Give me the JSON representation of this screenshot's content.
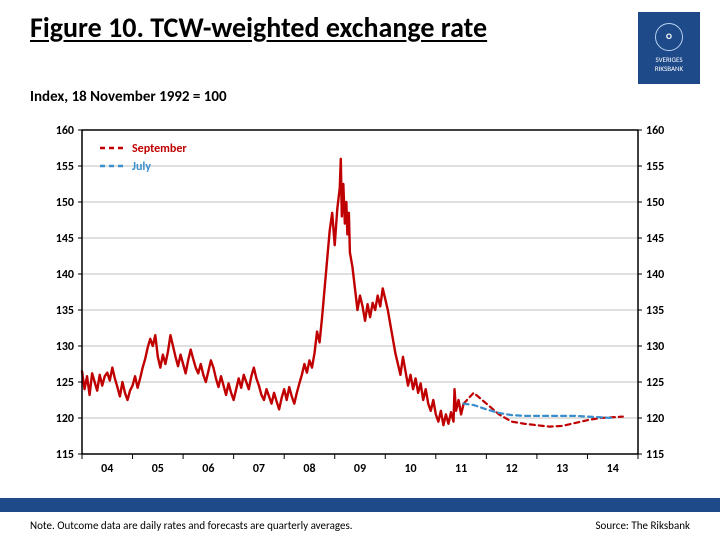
{
  "title": "Figure 10. TCW-weighted exchange rate",
  "subtitle": "Index, 18 November 1992 = 100",
  "note": "Note. Outcome data are daily rates and forecasts are quarterly averages.",
  "source": "Source: The Riksbank",
  "logo": {
    "line1": "SVERIGES",
    "line2": "RIKSBANK"
  },
  "chart": {
    "type": "line",
    "background_color": "#ffffff",
    "axis_color": "#000000",
    "grid_color": "#bfbfbf",
    "ylim": [
      115,
      160
    ],
    "ytick_step": 5,
    "yticks": [
      115,
      120,
      125,
      130,
      135,
      140,
      145,
      150,
      155,
      160
    ],
    "xlim": [
      2004,
      2015
    ],
    "xticks": [
      2004,
      2005,
      2006,
      2007,
      2008,
      2009,
      2010,
      2011,
      2012,
      2013,
      2014
    ],
    "xtick_labels": [
      "04",
      "05",
      "06",
      "07",
      "08",
      "09",
      "10",
      "11",
      "12",
      "13",
      "14"
    ],
    "axis_fontsize": 12,
    "axis_fontweight": 700,
    "line_width_main": 2.4,
    "line_width_forecast": 2.2,
    "dash_forecast": "5,4",
    "legend": {
      "position": "top-left",
      "items": [
        {
          "label": "September",
          "color": "#c00000",
          "dash": "5,4"
        },
        {
          "label": "July",
          "color": "#3b8ecc",
          "dash": "5,4"
        }
      ]
    },
    "series": [
      {
        "name": "outcome",
        "color": "#c00000",
        "solid": true,
        "data": [
          [
            2004.0,
            126.5
          ],
          [
            2004.05,
            124.0
          ],
          [
            2004.1,
            125.8
          ],
          [
            2004.15,
            123.2
          ],
          [
            2004.2,
            126.2
          ],
          [
            2004.25,
            125.0
          ],
          [
            2004.3,
            123.8
          ],
          [
            2004.35,
            126.0
          ],
          [
            2004.4,
            124.5
          ],
          [
            2004.45,
            125.8
          ],
          [
            2004.5,
            126.3
          ],
          [
            2004.55,
            125.2
          ],
          [
            2004.6,
            127.0
          ],
          [
            2004.65,
            125.5
          ],
          [
            2004.7,
            124.3
          ],
          [
            2004.75,
            123.0
          ],
          [
            2004.8,
            125.0
          ],
          [
            2004.85,
            123.5
          ],
          [
            2004.9,
            122.5
          ],
          [
            2004.95,
            123.8
          ],
          [
            2005.0,
            124.5
          ],
          [
            2005.05,
            125.8
          ],
          [
            2005.1,
            124.2
          ],
          [
            2005.15,
            125.5
          ],
          [
            2005.2,
            127.0
          ],
          [
            2005.25,
            128.2
          ],
          [
            2005.3,
            129.8
          ],
          [
            2005.35,
            131.0
          ],
          [
            2005.4,
            130.0
          ],
          [
            2005.45,
            131.5
          ],
          [
            2005.5,
            128.5
          ],
          [
            2005.55,
            127.0
          ],
          [
            2005.6,
            128.8
          ],
          [
            2005.65,
            127.5
          ],
          [
            2005.7,
            129.2
          ],
          [
            2005.75,
            131.5
          ],
          [
            2005.8,
            130.0
          ],
          [
            2005.85,
            128.5
          ],
          [
            2005.9,
            127.2
          ],
          [
            2005.95,
            128.8
          ],
          [
            2006.0,
            127.5
          ],
          [
            2006.05,
            126.2
          ],
          [
            2006.1,
            128.0
          ],
          [
            2006.15,
            129.5
          ],
          [
            2006.2,
            128.2
          ],
          [
            2006.25,
            127.0
          ],
          [
            2006.3,
            126.2
          ],
          [
            2006.35,
            127.5
          ],
          [
            2006.4,
            126.0
          ],
          [
            2006.45,
            125.0
          ],
          [
            2006.5,
            126.5
          ],
          [
            2006.55,
            128.0
          ],
          [
            2006.6,
            127.0
          ],
          [
            2006.65,
            125.5
          ],
          [
            2006.7,
            124.3
          ],
          [
            2006.75,
            125.8
          ],
          [
            2006.8,
            124.5
          ],
          [
            2006.85,
            123.2
          ],
          [
            2006.9,
            124.8
          ],
          [
            2006.95,
            123.5
          ],
          [
            2007.0,
            122.5
          ],
          [
            2007.05,
            124.0
          ],
          [
            2007.1,
            125.5
          ],
          [
            2007.15,
            124.2
          ],
          [
            2007.2,
            126.0
          ],
          [
            2007.25,
            125.0
          ],
          [
            2007.3,
            124.0
          ],
          [
            2007.35,
            125.8
          ],
          [
            2007.4,
            127.0
          ],
          [
            2007.45,
            125.5
          ],
          [
            2007.5,
            124.5
          ],
          [
            2007.55,
            123.2
          ],
          [
            2007.6,
            122.5
          ],
          [
            2007.65,
            124.0
          ],
          [
            2007.7,
            123.0
          ],
          [
            2007.75,
            122.0
          ],
          [
            2007.8,
            123.5
          ],
          [
            2007.85,
            122.3
          ],
          [
            2007.9,
            121.2
          ],
          [
            2007.95,
            122.8
          ],
          [
            2008.0,
            124.0
          ],
          [
            2008.05,
            122.5
          ],
          [
            2008.1,
            124.3
          ],
          [
            2008.15,
            123.0
          ],
          [
            2008.2,
            122.0
          ],
          [
            2008.25,
            123.5
          ],
          [
            2008.3,
            124.8
          ],
          [
            2008.35,
            126.0
          ],
          [
            2008.4,
            127.5
          ],
          [
            2008.45,
            126.3
          ],
          [
            2008.5,
            128.0
          ],
          [
            2008.55,
            127.0
          ],
          [
            2008.6,
            129.0
          ],
          [
            2008.65,
            132.0
          ],
          [
            2008.7,
            130.5
          ],
          [
            2008.75,
            134.0
          ],
          [
            2008.8,
            138.0
          ],
          [
            2008.85,
            142.0
          ],
          [
            2008.9,
            146.0
          ],
          [
            2008.95,
            148.5
          ],
          [
            2009.0,
            144.0
          ],
          [
            2009.05,
            149.0
          ],
          [
            2009.1,
            152.0
          ],
          [
            2009.12,
            156.0
          ],
          [
            2009.14,
            148.0
          ],
          [
            2009.17,
            152.5
          ],
          [
            2009.2,
            147.0
          ],
          [
            2009.23,
            150.0
          ],
          [
            2009.25,
            145.5
          ],
          [
            2009.28,
            148.5
          ],
          [
            2009.3,
            143.0
          ],
          [
            2009.35,
            141.0
          ],
          [
            2009.4,
            138.0
          ],
          [
            2009.45,
            135.0
          ],
          [
            2009.5,
            137.0
          ],
          [
            2009.55,
            135.5
          ],
          [
            2009.6,
            133.5
          ],
          [
            2009.65,
            135.8
          ],
          [
            2009.7,
            134.0
          ],
          [
            2009.75,
            136.0
          ],
          [
            2009.8,
            135.0
          ],
          [
            2009.85,
            137.0
          ],
          [
            2009.9,
            135.5
          ],
          [
            2009.95,
            138.0
          ],
          [
            2010.0,
            136.5
          ],
          [
            2010.05,
            135.0
          ],
          [
            2010.1,
            133.0
          ],
          [
            2010.15,
            131.0
          ],
          [
            2010.2,
            129.0
          ],
          [
            2010.25,
            127.5
          ],
          [
            2010.3,
            126.0
          ],
          [
            2010.35,
            128.5
          ],
          [
            2010.4,
            126.5
          ],
          [
            2010.45,
            124.5
          ],
          [
            2010.5,
            126.0
          ],
          [
            2010.55,
            124.0
          ],
          [
            2010.6,
            125.5
          ],
          [
            2010.65,
            123.5
          ],
          [
            2010.7,
            124.8
          ],
          [
            2010.75,
            122.5
          ],
          [
            2010.8,
            124.0
          ],
          [
            2010.85,
            122.0
          ],
          [
            2010.9,
            121.0
          ],
          [
            2010.95,
            122.5
          ],
          [
            2011.0,
            120.5
          ],
          [
            2011.05,
            119.5
          ],
          [
            2011.1,
            121.0
          ],
          [
            2011.15,
            119.0
          ],
          [
            2011.2,
            120.5
          ],
          [
            2011.25,
            119.2
          ],
          [
            2011.3,
            120.8
          ],
          [
            2011.35,
            119.5
          ],
          [
            2011.37,
            124.0
          ],
          [
            2011.4,
            121.0
          ],
          [
            2011.45,
            122.5
          ],
          [
            2011.5,
            120.5
          ],
          [
            2011.55,
            122.0
          ]
        ]
      },
      {
        "name": "september-forecast",
        "color": "#c00000",
        "solid": false,
        "data": [
          [
            2011.55,
            122.0
          ],
          [
            2011.75,
            123.5
          ],
          [
            2012.0,
            122.0
          ],
          [
            2012.25,
            120.5
          ],
          [
            2012.5,
            119.5
          ],
          [
            2012.75,
            119.2
          ],
          [
            2013.0,
            119.0
          ],
          [
            2013.25,
            118.8
          ],
          [
            2013.5,
            118.9
          ],
          [
            2013.75,
            119.3
          ],
          [
            2014.0,
            119.7
          ],
          [
            2014.25,
            120.0
          ],
          [
            2014.5,
            120.1
          ],
          [
            2014.7,
            120.2
          ]
        ]
      },
      {
        "name": "july-forecast",
        "color": "#3b8ecc",
        "solid": false,
        "data": [
          [
            2011.55,
            122.0
          ],
          [
            2011.75,
            121.8
          ],
          [
            2012.0,
            121.2
          ],
          [
            2012.25,
            120.7
          ],
          [
            2012.5,
            120.4
          ],
          [
            2012.75,
            120.3
          ],
          [
            2013.0,
            120.3
          ],
          [
            2013.25,
            120.3
          ],
          [
            2013.5,
            120.3
          ],
          [
            2013.75,
            120.3
          ],
          [
            2014.0,
            120.2
          ],
          [
            2014.25,
            120.1
          ],
          [
            2014.5,
            120.0
          ]
        ]
      }
    ]
  }
}
